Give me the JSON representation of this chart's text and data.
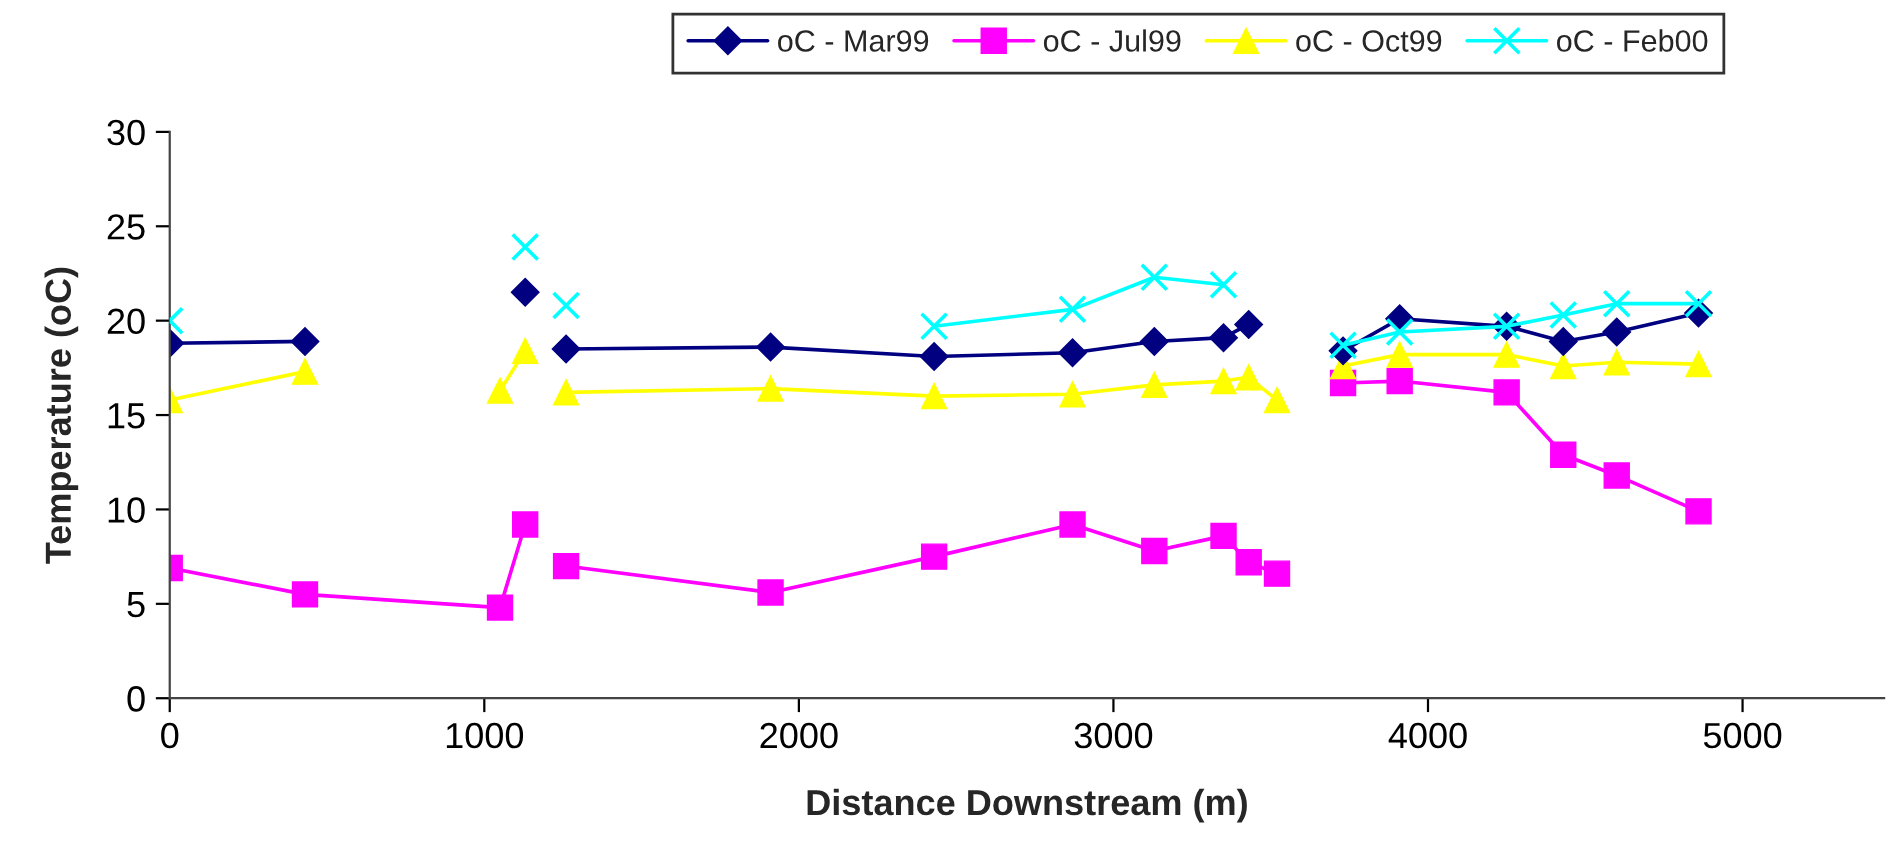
{
  "chart_data": {
    "type": "line",
    "xlabel": "Distance Downstream (m)",
    "ylabel": "Temperature (oC)",
    "x": [
      0,
      430,
      1050,
      1130,
      1195,
      1260,
      1910,
      2430,
      2870,
      3130,
      3350,
      3430,
      3520,
      3630,
      3730,
      3910,
      4250,
      4430,
      4600,
      4860
    ],
    "series": [
      {
        "name": "oC - Mar99",
        "color": "#000080",
        "marker": "diamond",
        "values": [
          18.8,
          18.9,
          null,
          21.5,
          null,
          18.5,
          18.6,
          18.1,
          18.3,
          18.9,
          19.1,
          19.8,
          null,
          null,
          18.4,
          20.1,
          19.7,
          18.9,
          19.4,
          20.4
        ]
      },
      {
        "name": "oC - Jul99",
        "color": "#ff00ff",
        "marker": "square",
        "values": [
          6.9,
          5.5,
          4.8,
          9.2,
          null,
          7.0,
          5.6,
          7.5,
          9.2,
          7.8,
          8.6,
          7.2,
          6.6,
          null,
          16.7,
          16.8,
          16.2,
          12.9,
          11.8,
          9.9
        ]
      },
      {
        "name": "oC - Oct99",
        "color": "#ffff00",
        "marker": "triangle",
        "x": [
          0,
          430,
          740,
          1050,
          1130,
          1195,
          1260,
          1910,
          2430,
          2870,
          3130,
          3350,
          3430,
          3520,
          3630,
          3730,
          3910,
          4250,
          4430,
          4600,
          4860
        ],
        "values": [
          15.8,
          17.3,
          null,
          16.3,
          18.4,
          null,
          16.2,
          16.4,
          16.0,
          16.1,
          16.6,
          16.8,
          17.0,
          15.8,
          null,
          17.6,
          18.2,
          18.2,
          17.6,
          17.8,
          17.7
        ]
      },
      {
        "name": "oC - Feb00",
        "color": "#00ffff",
        "marker": "cross",
        "values": [
          20.0,
          null,
          null,
          23.9,
          null,
          20.8,
          null,
          19.7,
          20.6,
          22.3,
          21.9,
          null,
          null,
          null,
          18.7,
          19.4,
          19.7,
          20.3,
          20.9,
          20.9
        ]
      }
    ],
    "xlim": [
      0,
      5450
    ],
    "xticks": [
      0,
      1000,
      2000,
      3000,
      4000,
      5000
    ],
    "ylim": [
      0,
      30
    ],
    "yticks": [
      0,
      5,
      10,
      15,
      20,
      25,
      30
    ],
    "grid": false,
    "legend": "top",
    "line_style": "solid"
  }
}
